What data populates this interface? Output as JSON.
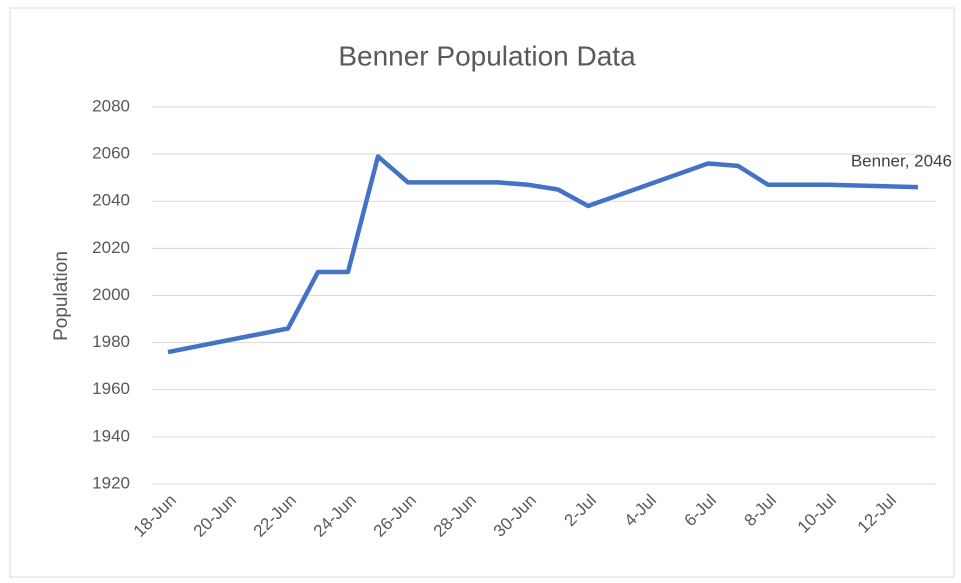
{
  "chart_data": {
    "type": "line",
    "title": "Benner Population Data",
    "y_label": "Population",
    "x": [
      "18-Jun",
      "22-Jun",
      "23-Jun",
      "24-Jun",
      "25-Jun",
      "26-Jun",
      "29-Jun",
      "30-Jun",
      "1-Jul",
      "2-Jul",
      "6-Jul",
      "7-Jul",
      "8-Jul",
      "10-Jul",
      "13-Jul"
    ],
    "series": [
      {
        "name": "Benner",
        "color": "#4472c4",
        "values": [
          1976,
          1986,
          2010,
          2010,
          2059,
          2048,
          2048,
          2047,
          2045,
          2038,
          2056,
          2055,
          2047,
          2047,
          2046
        ]
      }
    ],
    "annotation": "Benner, 2046",
    "xticks": [
      "18-Jun",
      "20-Jun",
      "22-Jun",
      "24-Jun",
      "26-Jun",
      "28-Jun",
      "30-Jun",
      "2-Jul",
      "4-Jul",
      "6-Jul",
      "8-Jul",
      "10-Jul",
      "12-Jul"
    ],
    "ylim": [
      1920,
      2080
    ],
    "yticks": [
      1920,
      1940,
      1960,
      1980,
      2000,
      2020,
      2040,
      2060,
      2080
    ],
    "grid": true
  }
}
